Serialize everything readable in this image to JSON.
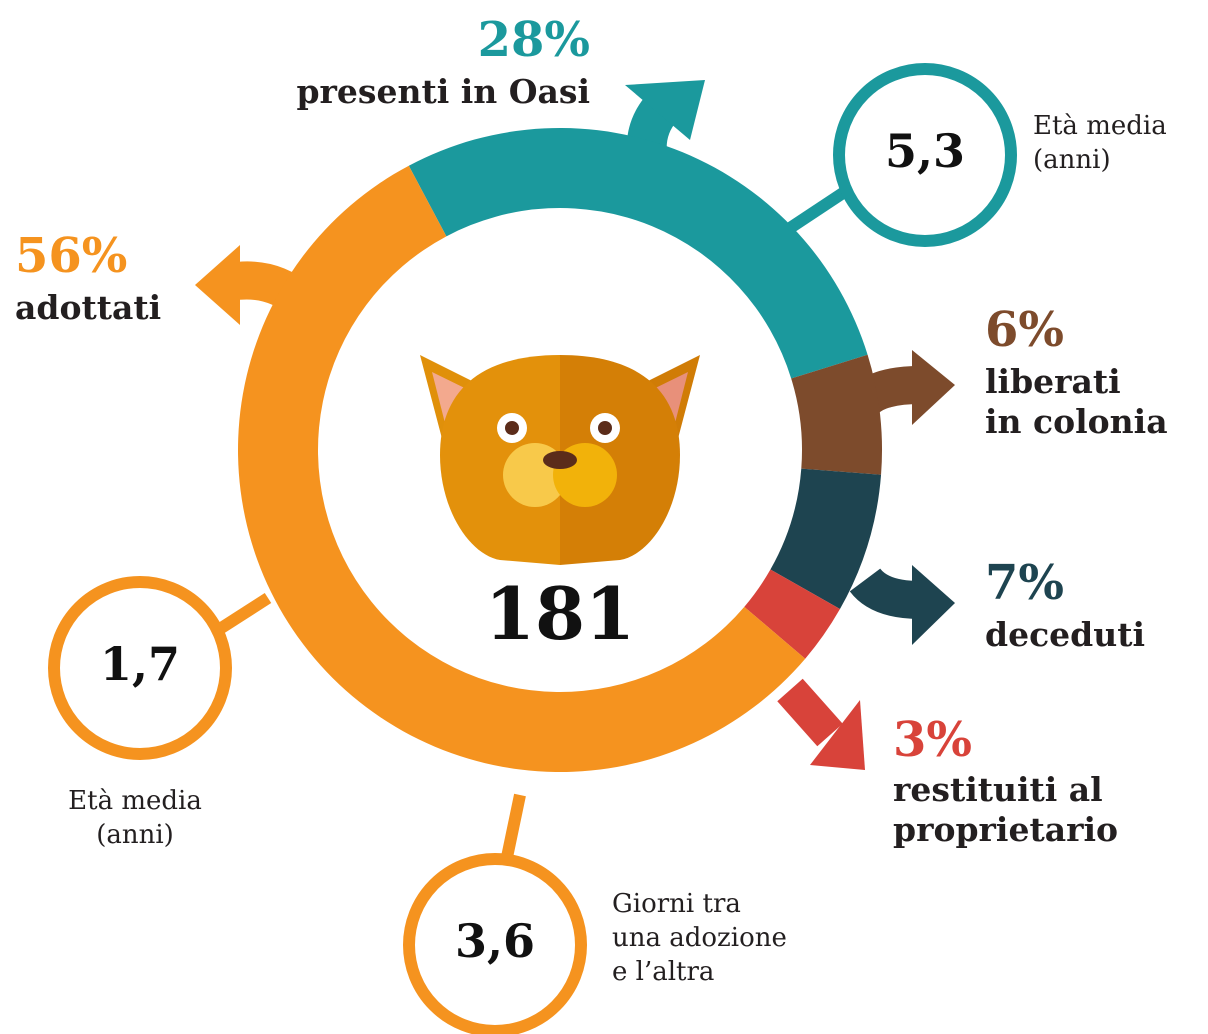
{
  "chart_data": {
    "type": "donut",
    "categories": [
      "presenti in Oasi",
      "liberati\nin colonia",
      "deceduti",
      "restituiti al\nproprietario",
      "adottati"
    ],
    "values": [
      28,
      6,
      7,
      3,
      56
    ],
    "value_labels": [
      "28%",
      "6%",
      "7%",
      "3%",
      "56%"
    ],
    "colors": [
      "#1b999d",
      "#7d4b2c",
      "#1e4450",
      "#d8433a",
      "#f5931f"
    ],
    "center_label": "181",
    "stats": [
      {
        "value_label": "5,3",
        "label": "Età media\n(anni)",
        "color": "#1b999d"
      },
      {
        "value_label": "1,7",
        "label": "Età media\n(anni)",
        "color": "#f5931f"
      },
      {
        "value_label": "3,6",
        "label": "Giorni tra\nuna adozione\ne l’altra",
        "color": "#f5931f"
      }
    ]
  }
}
